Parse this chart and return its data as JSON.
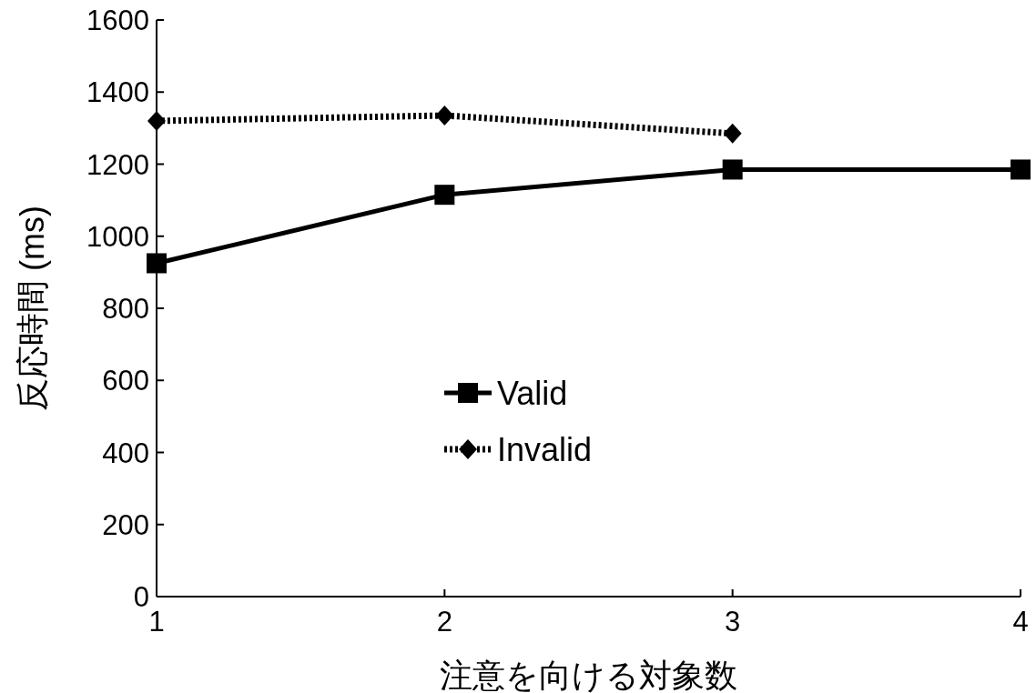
{
  "chart_data": {
    "type": "line",
    "xlabel": "注意を向ける対象数",
    "ylabel": "反応時間 (ms)",
    "x": [
      1,
      2,
      3,
      4
    ],
    "xlim": [
      1,
      4
    ],
    "xticks": [
      1,
      2,
      3,
      4
    ],
    "ylim": [
      0,
      1600
    ],
    "yticks": [
      0,
      200,
      400,
      600,
      800,
      1000,
      1200,
      1400,
      1600
    ],
    "grid": false,
    "legend": "center",
    "series": [
      {
        "name": "Valid",
        "color": "#000000",
        "marker": "square",
        "line_style": "solid",
        "values": [
          925,
          1115,
          1185,
          1185
        ]
      },
      {
        "name": "Invalid",
        "color": "#000000",
        "marker": "diamond",
        "line_style": "dotted",
        "values": [
          1320,
          1335,
          1285,
          null
        ]
      }
    ]
  }
}
